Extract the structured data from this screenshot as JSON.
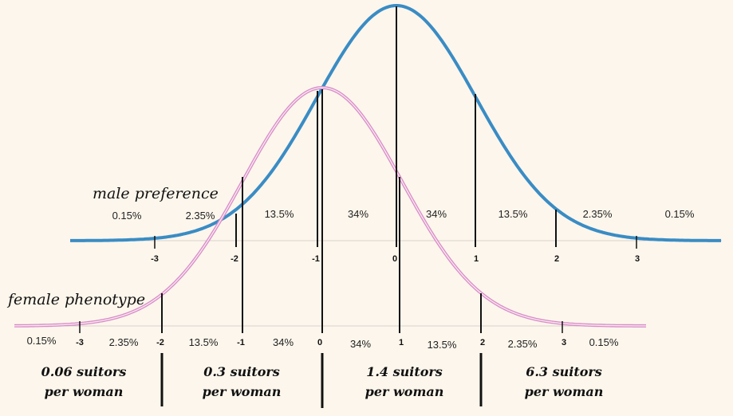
{
  "colors": {
    "background": "#fdf6ec",
    "male_curve": "#3a8cc4",
    "female_curve_outer": "#d98cc7",
    "female_curve_inner": "#f7e6f2",
    "line": "#111111"
  },
  "male": {
    "label": "male preference",
    "percentages": [
      "0.15%",
      "2.35%",
      "13.5%",
      "34%",
      "34%",
      "13.5%",
      "2.35%",
      "0.15%"
    ],
    "sigma_ticks": [
      "-3",
      "-2",
      "-1",
      "0",
      "1",
      "2",
      "3"
    ]
  },
  "female": {
    "label": "female phenotype",
    "percentages": [
      "0.15%",
      "2.35%",
      "13.5%",
      "34%",
      "34%",
      "13.5%",
      "2.35%",
      "0.15%"
    ],
    "sigma_ticks": [
      "-3",
      "-2",
      "-1",
      "0",
      "1",
      "2",
      "3"
    ]
  },
  "suitors": [
    {
      "line1": "0.06 suitors",
      "line2": "per woman"
    },
    {
      "line1": "0.3 suitors",
      "line2": "per woman"
    },
    {
      "line1": "1.4 suitors",
      "line2": "per woman"
    },
    {
      "line1": "6.3 suitors",
      "line2": "per woman"
    }
  ]
}
